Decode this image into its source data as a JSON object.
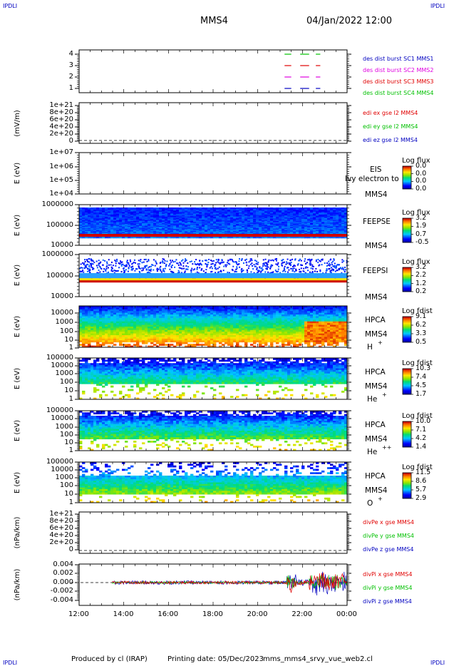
{
  "header": {
    "corner_left": "IPDLI",
    "corner_right": "IPDLI",
    "spacecraft": "MMS4",
    "datetime": "04/Jan/2022 12:00"
  },
  "footer": {
    "produced_by": "Produced by cl (IRAP)",
    "printing_date": "Printing date: 05/Dec/2023",
    "script_name": "mms_mms4_srvy_vue_web2.cl",
    "corner_left": "IPDLI",
    "corner_right": "IPDLI"
  },
  "x_axis": {
    "ticks": [
      "12:00",
      "14:00",
      "16:00",
      "18:00",
      "20:00",
      "22:00",
      "00:00"
    ]
  },
  "colors": {
    "red": "#e00000",
    "green": "#00c000",
    "blue": "#0000c0",
    "magenta": "#e000e0"
  },
  "panels": [
    {
      "id": "burst",
      "ylabel": "",
      "yticks": [
        "4",
        "3",
        "2",
        "1"
      ],
      "legend": [
        {
          "text": "des dist burst SC1 MMS1",
          "color": "#0000c0"
        },
        {
          "text": "des dist burst SC2 MMS2",
          "color": "#e000e0"
        },
        {
          "text": "des dist burst SC3 MMS3",
          "color": "#e00000"
        },
        {
          "text": "des dist burst SC4 MMS4",
          "color": "#00c000"
        }
      ]
    },
    {
      "id": "edi",
      "ylabel": "(mV/m)",
      "yticks": [
        "1e+21",
        "8e+20",
        "6e+20",
        "4e+20",
        "2e+20",
        "0"
      ],
      "legend": [
        {
          "text": "edi ex gse l2 MMS4",
          "color": "#e00000"
        },
        {
          "text": "edi ey gse l2 MMS4",
          "color": "#00c000"
        },
        {
          "text": "edi ez gse l2 MMS4",
          "color": "#0000c0"
        }
      ]
    },
    {
      "id": "eis",
      "ylabel": "E (eV)",
      "yticks": [
        "1e+07",
        "1e+06",
        "1e+05",
        "1e+04"
      ],
      "side": [
        "EIS",
        "MMS4"
      ],
      "extra": "Ivy electron to",
      "cbar_title": "Log flux",
      "cbar_ticks": [
        "0.0",
        "0.0",
        "0.0",
        "0.0"
      ]
    },
    {
      "id": "feepse",
      "ylabel": "E (eV)",
      "yticks": [
        "1000000",
        "100000",
        "10000"
      ],
      "side": [
        "FEEPSE",
        "MMS4"
      ],
      "cbar_title": "Log flux",
      "cbar_ticks": [
        "3.2",
        "1.9",
        "0.7",
        "-0.5"
      ]
    },
    {
      "id": "feepsi",
      "ylabel": "E (eV)",
      "yticks": [
        "1000000",
        "100000",
        "10000"
      ],
      "side": [
        "FEEPSI",
        "MMS4"
      ],
      "cbar_title": "Log flux",
      "cbar_ticks": [
        "3.2",
        "2.2",
        "1.2",
        "0.2"
      ]
    },
    {
      "id": "hpca_h",
      "ylabel": "E (eV)",
      "yticks": [
        "10000",
        "1000",
        "100",
        "10",
        "1"
      ],
      "side": [
        "HPCA",
        "MMS4"
      ],
      "ion": "H",
      "ion_sup": "+",
      "cbar_title": "Log fdist",
      "cbar_ticks": [
        "9.1",
        "6.2",
        "3.3",
        "0.5"
      ]
    },
    {
      "id": "hpca_he",
      "ylabel": "E (eV)",
      "yticks": [
        "100000",
        "10000",
        "1000",
        "100",
        "10",
        "1"
      ],
      "side": [
        "HPCA",
        "MMS4"
      ],
      "ion": "He",
      "ion_sup": "+",
      "cbar_title": "Log fdist",
      "cbar_ticks": [
        "10.3",
        "7.4",
        "4.5",
        "1.7"
      ]
    },
    {
      "id": "hpca_hepp",
      "ylabel": "E (eV)",
      "yticks": [
        "100000",
        "10000",
        "1000",
        "100",
        "10",
        "1"
      ],
      "side": [
        "HPCA",
        "MMS4"
      ],
      "ion": "He",
      "ion_sup": "++",
      "cbar_title": "Log fdist",
      "cbar_ticks": [
        "10.0",
        "7.1",
        "4.2",
        "1.4"
      ]
    },
    {
      "id": "hpca_o",
      "ylabel": "E (eV)",
      "yticks": [
        "100000",
        "10000",
        "1000",
        "100",
        "10",
        "1"
      ],
      "side": [
        "HPCA",
        "MMS4"
      ],
      "ion": "O",
      "ion_sup": "+",
      "cbar_title": "Log fdist",
      "cbar_ticks": [
        "11.5",
        "8.6",
        "5.7",
        "2.9"
      ]
    },
    {
      "id": "divpe",
      "ylabel": "(nPa/km)",
      "yticks": [
        "1e+21",
        "8e+20",
        "6e+20",
        "4e+20",
        "2e+20",
        "0"
      ],
      "legend": [
        {
          "text": "divPe x gse MMS4",
          "color": "#e00000"
        },
        {
          "text": "divPe y gse MMS4",
          "color": "#00c000"
        },
        {
          "text": "divPe z gse MMS4",
          "color": "#0000c0"
        }
      ]
    },
    {
      "id": "divpi",
      "ylabel": "(nPa/km)",
      "yticks": [
        "0.004",
        "0.002",
        "0.000",
        "-0.002",
        "-0.004"
      ],
      "legend": [
        {
          "text": "divPi x gse MMS4",
          "color": "#e00000"
        },
        {
          "text": "divPi y gse MMS4",
          "color": "#00c000"
        },
        {
          "text": "divPi z gse MMS4",
          "color": "#0000c0"
        }
      ]
    }
  ],
  "chart_data": {
    "type": "heatmap",
    "title": "MMS4",
    "x_range": [
      "12:00",
      "00:00"
    ],
    "burst_intervals": {
      "note_levels": "1=MMS1 2=MMS2 3=MMS3 4=MMS4",
      "segments_hours": [
        [
          21.2,
          21.5
        ],
        [
          21.9,
          22.3
        ],
        [
          22.6,
          22.8
        ]
      ]
    },
    "divpi_range": [
      -0.004,
      0.004
    ],
    "divpi_data_start": "13:30"
  }
}
